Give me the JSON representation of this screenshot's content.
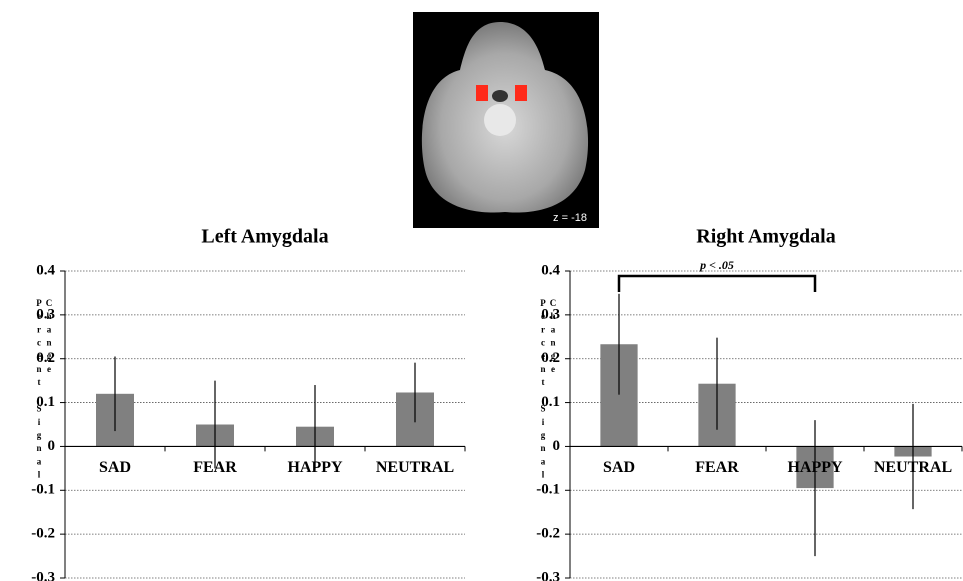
{
  "image_label": "z = -18",
  "chart_data": [
    {
      "type": "bar",
      "title": "Left Amygdala",
      "y_label": "Percent Signal Change",
      "categories": [
        "SAD",
        "FEAR",
        "HAPPY",
        "NEUTRAL"
      ],
      "values": [
        0.12,
        0.05,
        0.045,
        0.123
      ],
      "errors": [
        0.085,
        0.1,
        0.095,
        0.068
      ],
      "color": "#808080",
      "ylim": [
        -0.3,
        0.4
      ],
      "yticks": [
        -0.3,
        -0.2,
        -0.1,
        0,
        0.1,
        0.2,
        0.3,
        0.4
      ],
      "grid": true
    },
    {
      "type": "bar",
      "title": "Right Amygdala",
      "y_label": "Percent Signal Change",
      "annotation": "p < .05",
      "categories": [
        "SAD",
        "FEAR",
        "HAPPY",
        "NEUTRAL"
      ],
      "values": [
        0.233,
        0.143,
        -0.095,
        -0.023
      ],
      "errors": [
        0.115,
        0.105,
        0.155,
        0.12
      ],
      "color": "#808080",
      "ylim": [
        -0.3,
        0.4
      ],
      "yticks": [
        -0.3,
        -0.2,
        -0.1,
        0,
        0.1,
        0.2,
        0.3,
        0.4
      ],
      "grid": true
    }
  ]
}
